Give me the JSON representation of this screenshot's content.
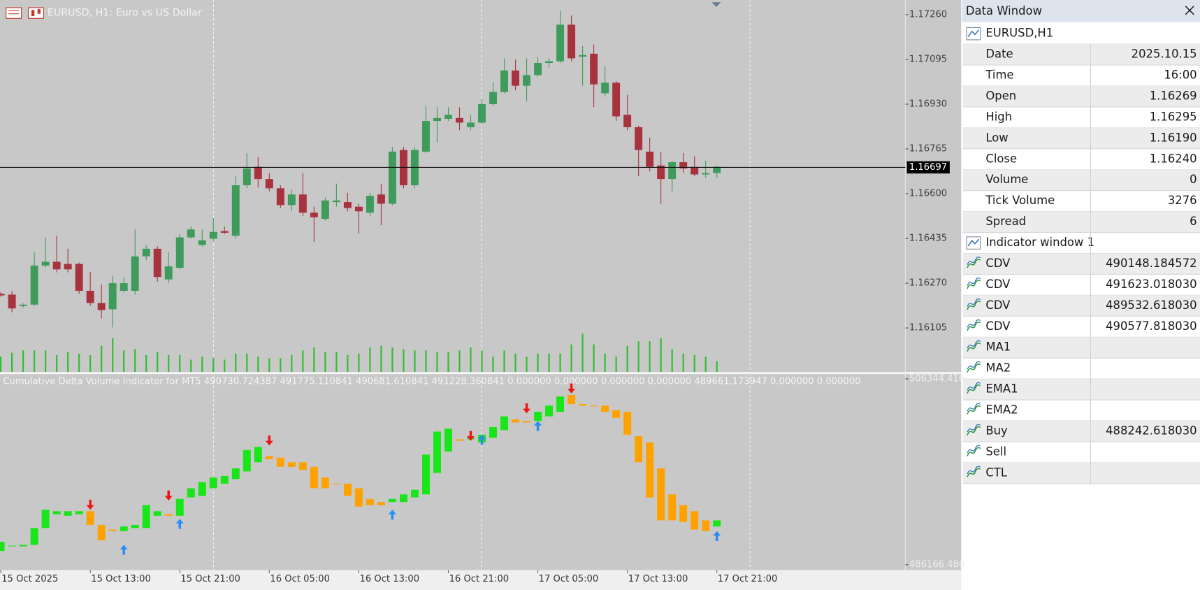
{
  "header": {
    "symbol_title": "EURUSD, H1:  Euro vs US Dollar"
  },
  "chart_data": [
    {
      "type": "candlestick",
      "categories": [
        "15 Oct 2025",
        null,
        null,
        null,
        null,
        null,
        null,
        null,
        "15 Oct 13:00",
        null,
        null,
        null,
        null,
        null,
        null,
        null,
        "15 Oct 21:00",
        null,
        null,
        null,
        null,
        null,
        null,
        null,
        "16 Oct 05:00",
        null,
        null,
        null,
        null,
        null,
        null,
        null,
        "16 Oct 13:00",
        null,
        null,
        null,
        null,
        null,
        null,
        null,
        "16 Oct 21:00",
        null,
        null,
        null,
        null,
        null,
        null,
        null,
        "17 Oct 05:00",
        null,
        null,
        null,
        null,
        null,
        null,
        null,
        "17 Oct 13:00",
        null,
        null,
        null,
        null,
        null,
        null,
        null,
        "17 Oct 21:00"
      ],
      "open": [
        1.16231,
        1.16228,
        1.16186,
        1.16191,
        1.16335,
        1.16349,
        1.16341,
        1.16341,
        1.16242,
        1.16197,
        1.16174,
        1.16242,
        1.16242,
        1.16369,
        1.16397,
        1.16284,
        1.16327,
        1.16439,
        1.16411,
        1.16434,
        1.16462,
        1.16445,
        1.16631,
        1.16699,
        1.16654,
        1.1662,
        1.16558,
        1.16597,
        1.1653,
        1.16507,
        1.16569,
        1.16569,
        1.16552,
        1.1653,
        1.16597,
        1.16563,
        1.16761,
        1.16631,
        1.16755,
        1.16868,
        1.16876,
        1.16879,
        1.16845,
        1.16862,
        1.1693,
        1.16975,
        1.17054,
        1.16998,
        1.17037,
        1.17082,
        1.17088,
        1.17223,
        1.17105,
        1.17116,
        1.1697,
        1.17009,
        1.16891,
        1.16845,
        1.16755,
        1.16704,
        1.16654,
        1.16716,
        1.16699,
        1.16671,
        1.16676
      ],
      "high": [
        1.16237,
        1.16242,
        1.16197,
        1.16383,
        1.16439,
        1.16445,
        1.16397,
        1.16346,
        1.16312,
        1.16265,
        1.16298,
        1.16293,
        1.16468,
        1.16411,
        1.16406,
        1.16383,
        1.16451,
        1.16479,
        1.16468,
        1.1651,
        1.16479,
        1.16665,
        1.1675,
        1.16735,
        1.16676,
        1.16631,
        1.16614,
        1.16676,
        1.16552,
        1.16586,
        1.16637,
        1.16603,
        1.16563,
        1.16603,
        1.16637,
        1.16772,
        1.16772,
        1.16772,
        1.16924,
        1.16919,
        1.16919,
        1.16919,
        1.16891,
        1.16947,
        1.17009,
        1.17099,
        1.17094,
        1.17099,
        1.17105,
        1.17099,
        1.17274,
        1.17257,
        1.17144,
        1.1715,
        1.17071,
        1.17015,
        1.16964,
        1.16851,
        1.16806,
        1.16755,
        1.16721,
        1.1675,
        1.16738,
        1.16721,
        1.16704
      ],
      "low": [
        1.1622,
        1.16163,
        1.1618,
        1.16186,
        1.16327,
        1.1631,
        1.1631,
        1.16231,
        1.16186,
        1.1614,
        1.16107,
        1.16236,
        1.16228,
        1.16355,
        1.16276,
        1.1627,
        1.16321,
        1.16434,
        1.16406,
        1.16425,
        1.16451,
        1.16434,
        1.1662,
        1.16623,
        1.16609,
        1.16547,
        1.16538,
        1.16518,
        1.16422,
        1.16501,
        1.16552,
        1.16535,
        1.16453,
        1.16518,
        1.16484,
        1.16558,
        1.1662,
        1.1662,
        1.1675,
        1.16789,
        1.16868,
        1.16834,
        1.16834,
        1.16857,
        1.16924,
        1.1697,
        1.16981,
        1.16941,
        1.17032,
        1.17065,
        1.17082,
        1.17088,
        1.16998,
        1.16919,
        1.16958,
        1.16868,
        1.16834,
        1.16665,
        1.16682,
        1.16563,
        1.16609,
        1.16676,
        1.16665,
        1.16659,
        1.16659
      ],
      "close": [
        1.16225,
        1.16177,
        1.16191,
        1.16335,
        1.16349,
        1.16321,
        1.16321,
        1.16242,
        1.16197,
        1.16171,
        1.1627,
        1.1627,
        1.16369,
        1.16397,
        1.16293,
        1.16332,
        1.16439,
        1.16468,
        1.16428,
        1.16459,
        1.16456,
        1.16631,
        1.16693,
        1.16654,
        1.1662,
        1.16558,
        1.16597,
        1.1653,
        1.16513,
        1.16575,
        1.16575,
        1.16547,
        1.16535,
        1.16592,
        1.16563,
        1.16755,
        1.16631,
        1.16761,
        1.16868,
        1.16879,
        1.16891,
        1.16862,
        1.16862,
        1.1693,
        1.16975,
        1.17054,
        1.16998,
        1.17037,
        1.17082,
        1.17088,
        1.17223,
        1.17099,
        1.17111,
        1.17003,
        1.17009,
        1.16885,
        1.16845,
        1.16761,
        1.16699,
        1.16654,
        1.16716,
        1.16693,
        1.16671,
        1.16676,
        1.16699
      ],
      "up_color": "#3f9b5c",
      "down_color": "#a8333f",
      "ylim": [
        1.15943,
        1.17314
      ],
      "yticks": [
        {
          "value": 1.1726,
          "label": "1.17260"
        },
        1.17095,
        {
          "value": 1.1693,
          "label": "1.16930"
        },
        1.16765,
        {
          "value": 1.166,
          "label": "1.16600"
        },
        1.16435,
        {
          "value": 1.1627,
          "label": "1.16270"
        },
        1.16105
      ],
      "current_price": 1.16697,
      "volume": {
        "type": "bar",
        "color": "#2fbf2f",
        "values": [
          2000,
          2500,
          2800,
          2800,
          2800,
          2200,
          2600,
          2400,
          2200,
          3400,
          4400,
          2800,
          3000,
          2200,
          2600,
          2200,
          2200,
          1600,
          2000,
          1800,
          1600,
          2400,
          2400,
          2000,
          1800,
          1800,
          2200,
          2800,
          3200,
          2600,
          2600,
          2200,
          2400,
          3200,
          3400,
          3200,
          3000,
          2800,
          2800,
          2600,
          2600,
          2800,
          3200,
          2800,
          2000,
          2800,
          2400,
          2000,
          2400,
          2400,
          2400,
          3600,
          5000,
          3600,
          2400,
          2000,
          3400,
          4000,
          4000,
          4400,
          3000,
          2400,
          2200,
          2000,
          1400
        ]
      }
    },
    {
      "type": "candlestick",
      "title": "Cumulative Delta Volume Indicator for MT5 490730.724387 491775.110841 490681.610841 491228.360841 0.000000 0.000000 0.000000 0.000000 489661.173947 0.000000 0.000000",
      "open": [
        487660,
        488158,
        488158,
        488324,
        490150,
        491644,
        491478,
        491644,
        491976,
        490482,
        489984,
        489818,
        490150,
        490150,
        491478,
        491644,
        491478,
        493470,
        493636,
        494466,
        494964,
        495462,
        496292,
        497288,
        497952,
        497786,
        497288,
        497288,
        496790,
        495628,
        494964,
        494964,
        494466,
        493304,
        492972,
        492972,
        492972,
        493470,
        493802,
        496126,
        498450,
        499778,
        499778,
        499446,
        499944,
        500774,
        501936,
        501770,
        501770,
        502268,
        502766,
        504592,
        503596,
        503430,
        503430,
        502932,
        502766,
        500110,
        499446,
        496624,
        493802,
        492640,
        491976,
        490980,
        490316
      ],
      "close": [
        488656,
        488241,
        488324,
        490150,
        492142,
        491976,
        491976,
        491976,
        490482,
        488822,
        489818,
        490316,
        490482,
        492640,
        491976,
        491478,
        493304,
        494466,
        495130,
        495628,
        495794,
        496624,
        498616,
        498948,
        497620,
        496790,
        496790,
        496458,
        494466,
        494466,
        494964,
        493636,
        492474,
        492640,
        492640,
        493304,
        493802,
        494300,
        498118,
        500608,
        500940,
        499612,
        499944,
        500276,
        501106,
        502268,
        501604,
        501604,
        502766,
        503430,
        504426,
        503596,
        503430,
        503430,
        502766,
        502102,
        500276,
        497288,
        493470,
        490980,
        490980,
        490814,
        489984,
        489818,
        490980
      ],
      "up_color": "#19e619",
      "down_color": "#ffa200",
      "ylim": [
        485585,
        506842
      ],
      "yticks": [
        {
          "value": 486166.48,
          "label": "486166.480"
        },
        {
          "value": 506344.416,
          "label": "506344.416"
        }
      ],
      "buy_color": "#2a8cf5",
      "sell_color": "#f01414",
      "buy": [
        null,
        null,
        null,
        null,
        null,
        null,
        null,
        null,
        null,
        null,
        null,
        488324,
        null,
        null,
        null,
        null,
        491146,
        null,
        null,
        null,
        null,
        null,
        null,
        null,
        null,
        null,
        null,
        null,
        null,
        null,
        null,
        null,
        null,
        null,
        null,
        492142,
        null,
        null,
        null,
        null,
        null,
        null,
        null,
        500276,
        null,
        null,
        null,
        null,
        501770,
        null,
        null,
        null,
        null,
        null,
        null,
        null,
        null,
        null,
        null,
        null,
        null,
        null,
        null,
        null,
        489818
      ],
      "sell": [
        null,
        null,
        null,
        null,
        null,
        null,
        null,
        null,
        492142,
        null,
        null,
        null,
        null,
        null,
        null,
        493138,
        null,
        null,
        null,
        null,
        null,
        null,
        null,
        null,
        499114,
        null,
        null,
        null,
        null,
        null,
        null,
        null,
        null,
        null,
        null,
        null,
        null,
        null,
        null,
        null,
        null,
        null,
        499612,
        null,
        null,
        null,
        null,
        502600,
        null,
        null,
        null,
        504758,
        null,
        null,
        null,
        null,
        null,
        null,
        null,
        null,
        null,
        null,
        null,
        null,
        null
      ]
    }
  ],
  "data_window": {
    "title": "Data Window",
    "sections": [
      {
        "title": "EURUSD,H1",
        "rows": [
          {
            "name": "Date",
            "value": "2025.10.15"
          },
          {
            "name": "Time",
            "value": "16:00"
          },
          {
            "name": "Open",
            "value": "1.16269"
          },
          {
            "name": "High",
            "value": "1.16295"
          },
          {
            "name": "Low",
            "value": "1.16190"
          },
          {
            "name": "Close",
            "value": "1.16240"
          },
          {
            "name": "Volume",
            "value": "0"
          },
          {
            "name": "Tick Volume",
            "value": "3276"
          },
          {
            "name": "Spread",
            "value": "6"
          }
        ]
      },
      {
        "title": "Indicator window 1",
        "rows": [
          {
            "name": "CDV",
            "value": "490148.184572"
          },
          {
            "name": "CDV",
            "value": "491623.018030"
          },
          {
            "name": "CDV",
            "value": "489532.618030"
          },
          {
            "name": "CDV",
            "value": "490577.818030"
          },
          {
            "name": "MA1"
          },
          {
            "name": "MA2"
          },
          {
            "name": "EMA1"
          },
          {
            "name": "EMA2"
          },
          {
            "name": "Buy",
            "value": "488242.618030"
          },
          {
            "name": "Sell"
          },
          {
            "name": "CTL"
          }
        ]
      }
    ]
  }
}
